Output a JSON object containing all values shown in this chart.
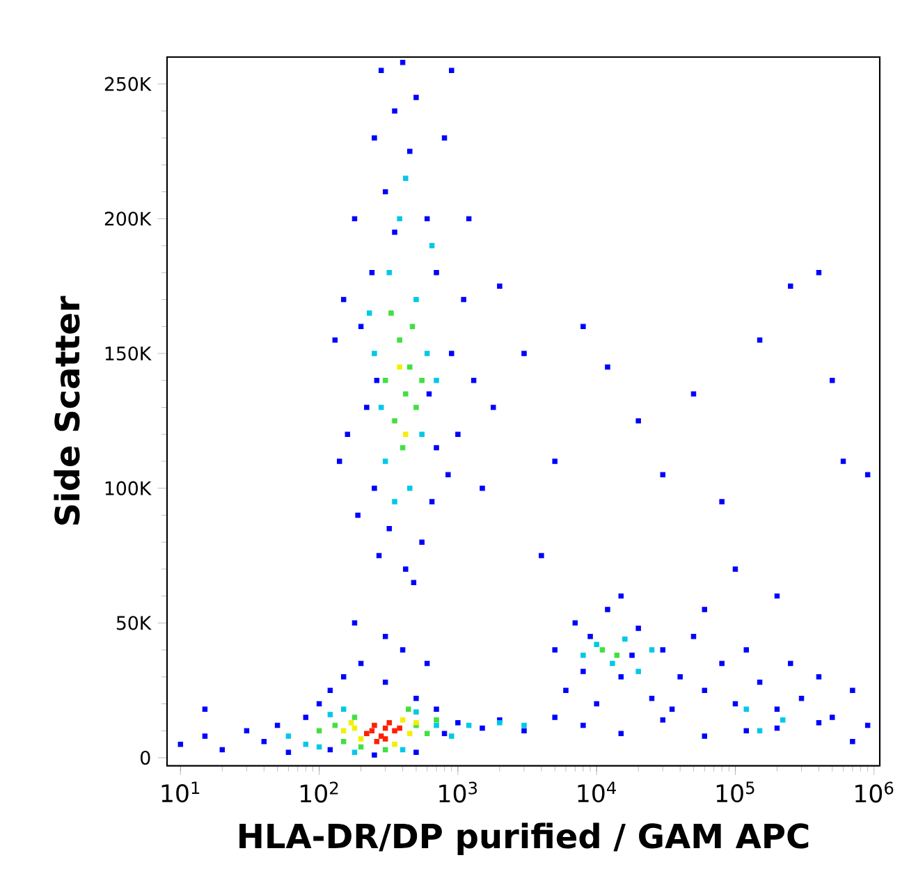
{
  "chart_data": {
    "type": "scatter",
    "xlabel": "HLA-DR/DP purified / GAM APC",
    "ylabel": "Side Scatter",
    "log": "x",
    "marker": "square",
    "xlim": [
      8,
      1100000
    ],
    "ylim": [
      -3000,
      260000
    ],
    "xticks": [
      {
        "value": 10,
        "label": "10$^{1}$"
      },
      {
        "value": 100,
        "label": "10$^{2}$"
      },
      {
        "value": 1000,
        "label": "10$^{3}$"
      },
      {
        "value": 10000,
        "label": "10$^{4}$"
      },
      {
        "value": 100000,
        "label": "10$^{5}$"
      },
      {
        "value": 1000000,
        "label": "10$^{6}$"
      }
    ],
    "yticks": [
      {
        "value": 0,
        "label": "0"
      },
      {
        "value": 50000,
        "label": "50K"
      },
      {
        "value": 100000,
        "label": "100K"
      },
      {
        "value": 150000,
        "label": "150K"
      },
      {
        "value": 200000,
        "label": "200K"
      },
      {
        "value": 250000,
        "label": "250K"
      }
    ],
    "series": [
      {
        "color": "#0000ff",
        "x": [
          150,
          180,
          200,
          220,
          250,
          250,
          280,
          300,
          320,
          350,
          400,
          450,
          500,
          550,
          600,
          650,
          700,
          800,
          900,
          1000,
          1100,
          1200,
          1300,
          160,
          190,
          240,
          270,
          420,
          700,
          850,
          130,
          1500,
          1800,
          2000,
          260,
          900,
          350,
          480,
          620,
          140,
          3000,
          5000,
          8000,
          12000,
          20000,
          30000,
          50000,
          80000,
          150000,
          250000,
          400000,
          500000,
          600000,
          100000,
          200000,
          4000,
          15000,
          900000,
          5000,
          6000,
          7000,
          8000,
          9000,
          12000,
          15000,
          20000,
          25000,
          30000,
          40000,
          50000,
          60000,
          80000,
          100000,
          120000,
          150000,
          200000,
          250000,
          300000,
          400000,
          500000,
          700000,
          60000,
          18000,
          35000,
          10000,
          10,
          15,
          20,
          30,
          40,
          50,
          60,
          80,
          100,
          120,
          150,
          200,
          300,
          400,
          500,
          700,
          800,
          1000,
          1500,
          2000,
          3000,
          5000,
          8000,
          15000,
          30000,
          60000,
          120000,
          200000,
          400000,
          700000,
          900000,
          15,
          250,
          500,
          120,
          300,
          600,
          180
        ],
        "values": [
          170000,
          200000,
          160000,
          130000,
          230000,
          100000,
          255000,
          210000,
          85000,
          240000,
          258000,
          225000,
          245000,
          80000,
          200000,
          95000,
          180000,
          230000,
          150000,
          120000,
          170000,
          200000,
          140000,
          120000,
          90000,
          180000,
          75000,
          70000,
          115000,
          105000,
          155000,
          100000,
          130000,
          175000,
          140000,
          255000,
          195000,
          65000,
          135000,
          110000,
          150000,
          110000,
          160000,
          145000,
          125000,
          105000,
          135000,
          95000,
          155000,
          175000,
          180000,
          140000,
          110000,
          70000,
          60000,
          75000,
          60000,
          105000,
          40000,
          25000,
          50000,
          32000,
          45000,
          55000,
          30000,
          48000,
          22000,
          40000,
          30000,
          45000,
          25000,
          35000,
          20000,
          40000,
          28000,
          18000,
          35000,
          22000,
          30000,
          15000,
          25000,
          55000,
          38000,
          18000,
          20000,
          5000,
          8000,
          3000,
          10000,
          6000,
          12000,
          2000,
          15000,
          20000,
          25000,
          30000,
          35000,
          28000,
          40000,
          22000,
          18000,
          9000,
          13000,
          11000,
          14000,
          10000,
          15000,
          12000,
          9000,
          14000,
          8000,
          10000,
          11000,
          13000,
          6000,
          12000,
          18000,
          1000,
          2000,
          3000,
          45000,
          35000,
          50000
        ]
      },
      {
        "color": "#00c8e6",
        "x": [
          250,
          300,
          320,
          350,
          380,
          450,
          500,
          550,
          600,
          650,
          280,
          420,
          700,
          230,
          8000,
          10000,
          13000,
          16000,
          20000,
          25000,
          120000,
          150000,
          220000,
          60,
          80,
          100,
          120,
          150,
          500,
          700,
          900,
          1200,
          2000,
          3000,
          180,
          400
        ],
        "values": [
          150000,
          110000,
          180000,
          95000,
          200000,
          100000,
          170000,
          120000,
          150000,
          190000,
          130000,
          215000,
          140000,
          165000,
          38000,
          42000,
          35000,
          44000,
          32000,
          40000,
          18000,
          10000,
          14000,
          8000,
          5000,
          4000,
          16000,
          18000,
          17000,
          12000,
          8000,
          12000,
          13000,
          12000,
          2000,
          3000
        ]
      },
      {
        "color": "#40e040",
        "x": [
          300,
          350,
          380,
          420,
          450,
          500,
          400,
          330,
          550,
          470,
          11000,
          14000,
          100,
          130,
          150,
          180,
          440,
          500,
          600,
          200,
          300,
          700
        ],
        "values": [
          140000,
          125000,
          155000,
          135000,
          145000,
          130000,
          115000,
          165000,
          140000,
          160000,
          40000,
          38000,
          10000,
          12000,
          6000,
          15000,
          18000,
          12000,
          9000,
          4000,
          3000,
          14000
        ]
      },
      {
        "color": "#f0f000",
        "x": [
          150,
          170,
          200,
          450,
          500,
          400,
          420,
          380,
          180,
          350
        ],
        "values": [
          10000,
          13000,
          7000,
          9000,
          13000,
          14000,
          120000,
          145000,
          11000,
          5000
        ]
      },
      {
        "color": "#ff1e00",
        "x": [
          220,
          250,
          280,
          300,
          320,
          350,
          260,
          380,
          240,
          300
        ],
        "values": [
          9000,
          12000,
          8000,
          11000,
          13000,
          10000,
          6000,
          11000,
          10000,
          7000
        ]
      }
    ]
  }
}
